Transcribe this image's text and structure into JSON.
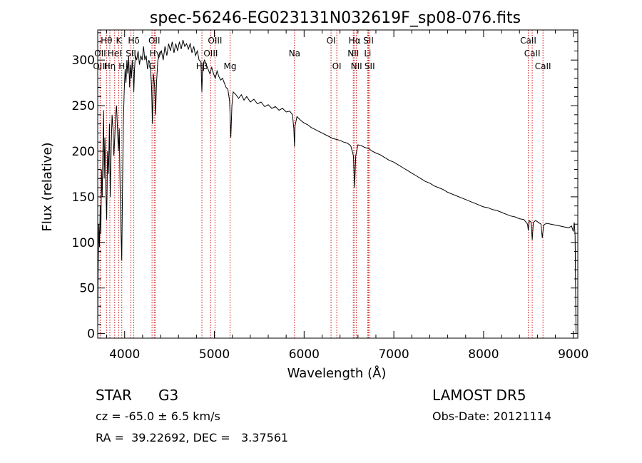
{
  "chart_data": {
    "type": "line",
    "title": "spec-56246-EG023131N032619F_sp08-076.fits",
    "xlabel": "Wavelength (Å)",
    "ylabel": "Flux (relative)",
    "xlim": [
      3700,
      9050
    ],
    "ylim": [
      -5,
      333
    ],
    "x_ticks": [
      4000,
      5000,
      6000,
      7000,
      8000,
      9000
    ],
    "y_ticks": [
      0,
      50,
      100,
      150,
      200,
      250,
      300
    ],
    "series": [
      {
        "points": [
          [
            3700,
            2
          ],
          [
            3705,
            70
          ],
          [
            3712,
            120
          ],
          [
            3720,
            95
          ],
          [
            3728,
            140
          ],
          [
            3735,
            110
          ],
          [
            3742,
            180
          ],
          [
            3750,
            150
          ],
          [
            3758,
            205
          ],
          [
            3765,
            245
          ],
          [
            3772,
            170
          ],
          [
            3780,
            215
          ],
          [
            3790,
            160
          ],
          [
            3800,
            125
          ],
          [
            3810,
            200
          ],
          [
            3820,
            175
          ],
          [
            3830,
            230
          ],
          [
            3840,
            150
          ],
          [
            3850,
            205
          ],
          [
            3860,
            240
          ],
          [
            3870,
            225
          ],
          [
            3880,
            195
          ],
          [
            3890,
            215
          ],
          [
            3900,
            240
          ],
          [
            3910,
            250
          ],
          [
            3920,
            225
          ],
          [
            3930,
            200
          ],
          [
            3940,
            225
          ],
          [
            3950,
            160
          ],
          [
            3960,
            110
          ],
          [
            3968,
            80
          ],
          [
            3975,
            150
          ],
          [
            3985,
            230
          ],
          [
            3995,
            265
          ],
          [
            4005,
            290
          ],
          [
            4015,
            275
          ],
          [
            4025,
            300
          ],
          [
            4035,
            285
          ],
          [
            4045,
            305
          ],
          [
            4055,
            270
          ],
          [
            4065,
            295
          ],
          [
            4075,
            280
          ],
          [
            4085,
            300
          ],
          [
            4095,
            285
          ],
          [
            4102,
            265
          ],
          [
            4110,
            290
          ],
          [
            4120,
            305
          ],
          [
            4135,
            300
          ],
          [
            4150,
            310
          ],
          [
            4165,
            295
          ],
          [
            4180,
            305
          ],
          [
            4195,
            300
          ],
          [
            4210,
            315
          ],
          [
            4225,
            300
          ],
          [
            4240,
            305
          ],
          [
            4255,
            290
          ],
          [
            4270,
            300
          ],
          [
            4285,
            295
          ],
          [
            4300,
            270
          ],
          [
            4310,
            230
          ],
          [
            4320,
            285
          ],
          [
            4335,
            270
          ],
          [
            4345,
            240
          ],
          [
            4355,
            275
          ],
          [
            4370,
            300
          ],
          [
            4390,
            305
          ],
          [
            4410,
            310
          ],
          [
            4430,
            300
          ],
          [
            4450,
            315
          ],
          [
            4470,
            305
          ],
          [
            4490,
            318
          ],
          [
            4510,
            310
          ],
          [
            4530,
            320
          ],
          [
            4550,
            308
          ],
          [
            4570,
            318
          ],
          [
            4590,
            310
          ],
          [
            4610,
            320
          ],
          [
            4630,
            312
          ],
          [
            4650,
            322
          ],
          [
            4670,
            315
          ],
          [
            4690,
            318
          ],
          [
            4710,
            312
          ],
          [
            4730,
            318
          ],
          [
            4750,
            308
          ],
          [
            4770,
            315
          ],
          [
            4790,
            305
          ],
          [
            4810,
            310
          ],
          [
            4830,
            300
          ],
          [
            4850,
            298
          ],
          [
            4861,
            265
          ],
          [
            4870,
            295
          ],
          [
            4890,
            300
          ],
          [
            4910,
            295
          ],
          [
            4930,
            290
          ],
          [
            4950,
            285
          ],
          [
            4970,
            292
          ],
          [
            4990,
            285
          ],
          [
            5010,
            280
          ],
          [
            5030,
            288
          ],
          [
            5050,
            282
          ],
          [
            5070,
            278
          ],
          [
            5090,
            280
          ],
          [
            5110,
            275
          ],
          [
            5130,
            270
          ],
          [
            5150,
            268
          ],
          [
            5170,
            255
          ],
          [
            5183,
            215
          ],
          [
            5195,
            250
          ],
          [
            5210,
            265
          ],
          [
            5240,
            262
          ],
          [
            5270,
            258
          ],
          [
            5300,
            262
          ],
          [
            5330,
            256
          ],
          [
            5360,
            260
          ],
          [
            5400,
            254
          ],
          [
            5440,
            257
          ],
          [
            5480,
            252
          ],
          [
            5520,
            254
          ],
          [
            5560,
            249
          ],
          [
            5600,
            251
          ],
          [
            5640,
            247
          ],
          [
            5680,
            249
          ],
          [
            5720,
            245
          ],
          [
            5760,
            247
          ],
          [
            5800,
            243
          ],
          [
            5840,
            244
          ],
          [
            5870,
            240
          ],
          [
            5885,
            225
          ],
          [
            5893,
            205
          ],
          [
            5900,
            228
          ],
          [
            5920,
            238
          ],
          [
            5960,
            234
          ],
          [
            6000,
            231
          ],
          [
            6040,
            229
          ],
          [
            6080,
            226
          ],
          [
            6120,
            224
          ],
          [
            6160,
            222
          ],
          [
            6200,
            220
          ],
          [
            6240,
            218
          ],
          [
            6280,
            216
          ],
          [
            6320,
            214
          ],
          [
            6360,
            213
          ],
          [
            6400,
            212
          ],
          [
            6440,
            210
          ],
          [
            6480,
            209
          ],
          [
            6520,
            206
          ],
          [
            6550,
            195
          ],
          [
            6563,
            160
          ],
          [
            6575,
            195
          ],
          [
            6600,
            207
          ],
          [
            6640,
            206
          ],
          [
            6680,
            204
          ],
          [
            6720,
            203
          ],
          [
            6760,
            200
          ],
          [
            6800,
            198
          ],
          [
            6850,
            196
          ],
          [
            6900,
            193
          ],
          [
            6950,
            190
          ],
          [
            7000,
            188
          ],
          [
            7050,
            185
          ],
          [
            7100,
            182
          ],
          [
            7150,
            179
          ],
          [
            7200,
            176
          ],
          [
            7250,
            173
          ],
          [
            7300,
            170
          ],
          [
            7350,
            167
          ],
          [
            7400,
            165
          ],
          [
            7450,
            162
          ],
          [
            7500,
            160
          ],
          [
            7550,
            158
          ],
          [
            7600,
            155
          ],
          [
            7650,
            153
          ],
          [
            7700,
            151
          ],
          [
            7750,
            149
          ],
          [
            7800,
            147
          ],
          [
            7850,
            145
          ],
          [
            7900,
            143
          ],
          [
            7950,
            141
          ],
          [
            8000,
            139
          ],
          [
            8050,
            138
          ],
          [
            8100,
            136
          ],
          [
            8150,
            135
          ],
          [
            8200,
            133
          ],
          [
            8250,
            131
          ],
          [
            8300,
            129
          ],
          [
            8350,
            128
          ],
          [
            8400,
            126
          ],
          [
            8450,
            125
          ],
          [
            8490,
            120
          ],
          [
            8498,
            113
          ],
          [
            8510,
            124
          ],
          [
            8530,
            122
          ],
          [
            8542,
            103
          ],
          [
            8555,
            122
          ],
          [
            8580,
            124
          ],
          [
            8610,
            122
          ],
          [
            8640,
            120
          ],
          [
            8654,
            105
          ],
          [
            8670,
            119
          ],
          [
            8700,
            121
          ],
          [
            8750,
            120
          ],
          [
            8800,
            119
          ],
          [
            8850,
            118
          ],
          [
            8900,
            117
          ],
          [
            8950,
            116
          ],
          [
            8980,
            118
          ],
          [
            9000,
            112
          ],
          [
            9010,
            122
          ],
          [
            9020,
            108
          ],
          [
            9030,
            0
          ]
        ]
      }
    ],
    "lines": [
      {
        "label": "Hθ",
        "x": 3798,
        "row": 0
      },
      {
        "label": "K",
        "x": 3934,
        "row": 0
      },
      {
        "label": "Hδ",
        "x": 4102,
        "row": 0
      },
      {
        "label": "OII",
        "x": 4330,
        "row": 0
      },
      {
        "label": "OIII",
        "x": 5007,
        "row": 0
      },
      {
        "label": "OI",
        "x": 6300,
        "row": 0
      },
      {
        "label": "Hα",
        "x": 6563,
        "row": 0
      },
      {
        "label": "SII",
        "x": 6717,
        "row": 0
      },
      {
        "label": "CaII",
        "x": 8498,
        "row": 0
      },
      {
        "label": "OII",
        "x": 3727,
        "row": 1
      },
      {
        "label": "HeI",
        "x": 3889,
        "row": 1
      },
      {
        "label": "SII",
        "x": 4070,
        "row": 1
      },
      {
        "label": "Hγ",
        "x": 4340,
        "row": 1
      },
      {
        "label": "OIII",
        "x": 4959,
        "row": 1
      },
      {
        "label": "Na",
        "x": 5893,
        "row": 1
      },
      {
        "label": "NII",
        "x": 6548,
        "row": 1
      },
      {
        "label": "Li",
        "x": 6708,
        "row": 1
      },
      {
        "label": "CaII",
        "x": 8542,
        "row": 1
      },
      {
        "label": "OIII",
        "x": 3727,
        "row": 2
      },
      {
        "label": "Hη",
        "x": 3835,
        "row": 2
      },
      {
        "label": "H",
        "x": 3968,
        "row": 2
      },
      {
        "label": "G",
        "x": 4305,
        "row": 2
      },
      {
        "label": "Hβ",
        "x": 4861,
        "row": 2
      },
      {
        "label": "Mg",
        "x": 5175,
        "row": 2
      },
      {
        "label": "OI",
        "x": 6364,
        "row": 2
      },
      {
        "label": "NII",
        "x": 6583,
        "row": 2
      },
      {
        "label": "SII",
        "x": 6731,
        "row": 2
      },
      {
        "label": "CaII",
        "x": 8662,
        "row": 2
      }
    ],
    "colors": {
      "spectrum": "#000000",
      "line_markers": "#cc0000",
      "axes": "#000000"
    }
  },
  "info": {
    "object_type": "STAR",
    "subclass": "G3",
    "survey": "LAMOST DR5",
    "cz": "cz = -65.0 ± 6.5 km/s",
    "obs_date": "Obs-Date: 20121114",
    "coords": "RA =  39.22692, DEC =   3.37561"
  }
}
